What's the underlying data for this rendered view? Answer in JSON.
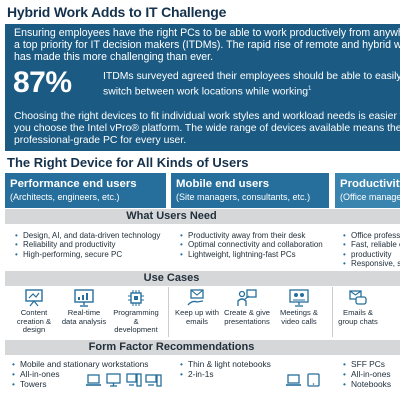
{
  "page": {
    "title": "Hybrid Work Adds to IT Challenge"
  },
  "hero": {
    "intro": "Ensuring employees have the right PCs to be able to work productively from anywhere is a top priority for IT decision makers (ITDMs). The rapid rise of remote and hybrid work has made this more challenging than ever.",
    "stat_value": "87%",
    "stat_text": "ITDMs surveyed agreed their employees should be able to easily switch between work locations while working",
    "stat_footnote": "1",
    "outro": "Choosing the right devices to fit individual work styles and workload needs is easier when you choose the Intel vPro® platform. The wide range of devices available means there's a professional-grade PC for every user."
  },
  "section": {
    "title": "The Right Device for All Kinds of Users"
  },
  "columns": [
    {
      "title": "Performance end users",
      "subtitle": "(Architects, engineers, etc.)"
    },
    {
      "title": "Mobile end users",
      "subtitle": "(Site managers, consultants, etc.)"
    },
    {
      "title": "Productivity",
      "subtitle": "(Office manager"
    }
  ],
  "bands": {
    "need": "What Users Need",
    "uses": "Use Cases",
    "form": "Form Factor Recommendations"
  },
  "needs": [
    [
      "Design, AI, and data-driven technology",
      "Reliability and productivity",
      "High-performing, secure PC"
    ],
    [
      "Productivity away from their desk",
      "Optimal connectivity and collaboration",
      "Lightweight, lightning-fast PCs"
    ],
    [
      "Office profess",
      "Fast, reliable c",
      "productivity",
      "Responsive, se"
    ]
  ],
  "use_cases": [
    [
      {
        "icon": "presentation-icon",
        "label": "Content creation & design"
      },
      {
        "icon": "analytics-monitor-icon",
        "label": "Real-time data analysis"
      },
      {
        "icon": "chip-icon",
        "label": "Programming & development"
      }
    ],
    [
      {
        "icon": "hand-email-icon",
        "label": "Keep up with emails"
      },
      {
        "icon": "presenter-icon",
        "label": "Create & give presentations"
      },
      {
        "icon": "video-call-icon",
        "label": "Meetings & video calls"
      }
    ],
    [
      {
        "icon": "chat-icon",
        "label": "Emails & group chats"
      }
    ]
  ],
  "form_factors": [
    [
      "Mobile and stationary workstations",
      "All-in-ones",
      "Towers"
    ],
    [
      "Thin & light notebooks",
      "2-in-1s"
    ],
    [
      "SFF PCs",
      "All-in-ones",
      "Notebooks"
    ]
  ],
  "form_icons": [
    [
      "laptop-icon",
      "all-in-one-icon",
      "tower-icon",
      "workstation-icon"
    ],
    [
      "laptop-icon",
      "tablet-icon"
    ]
  ],
  "colors": {
    "hero_bg": "#1a5a83",
    "column_header": "#266f9c",
    "band": "#d5d7d9",
    "title_text": "#15324d"
  }
}
